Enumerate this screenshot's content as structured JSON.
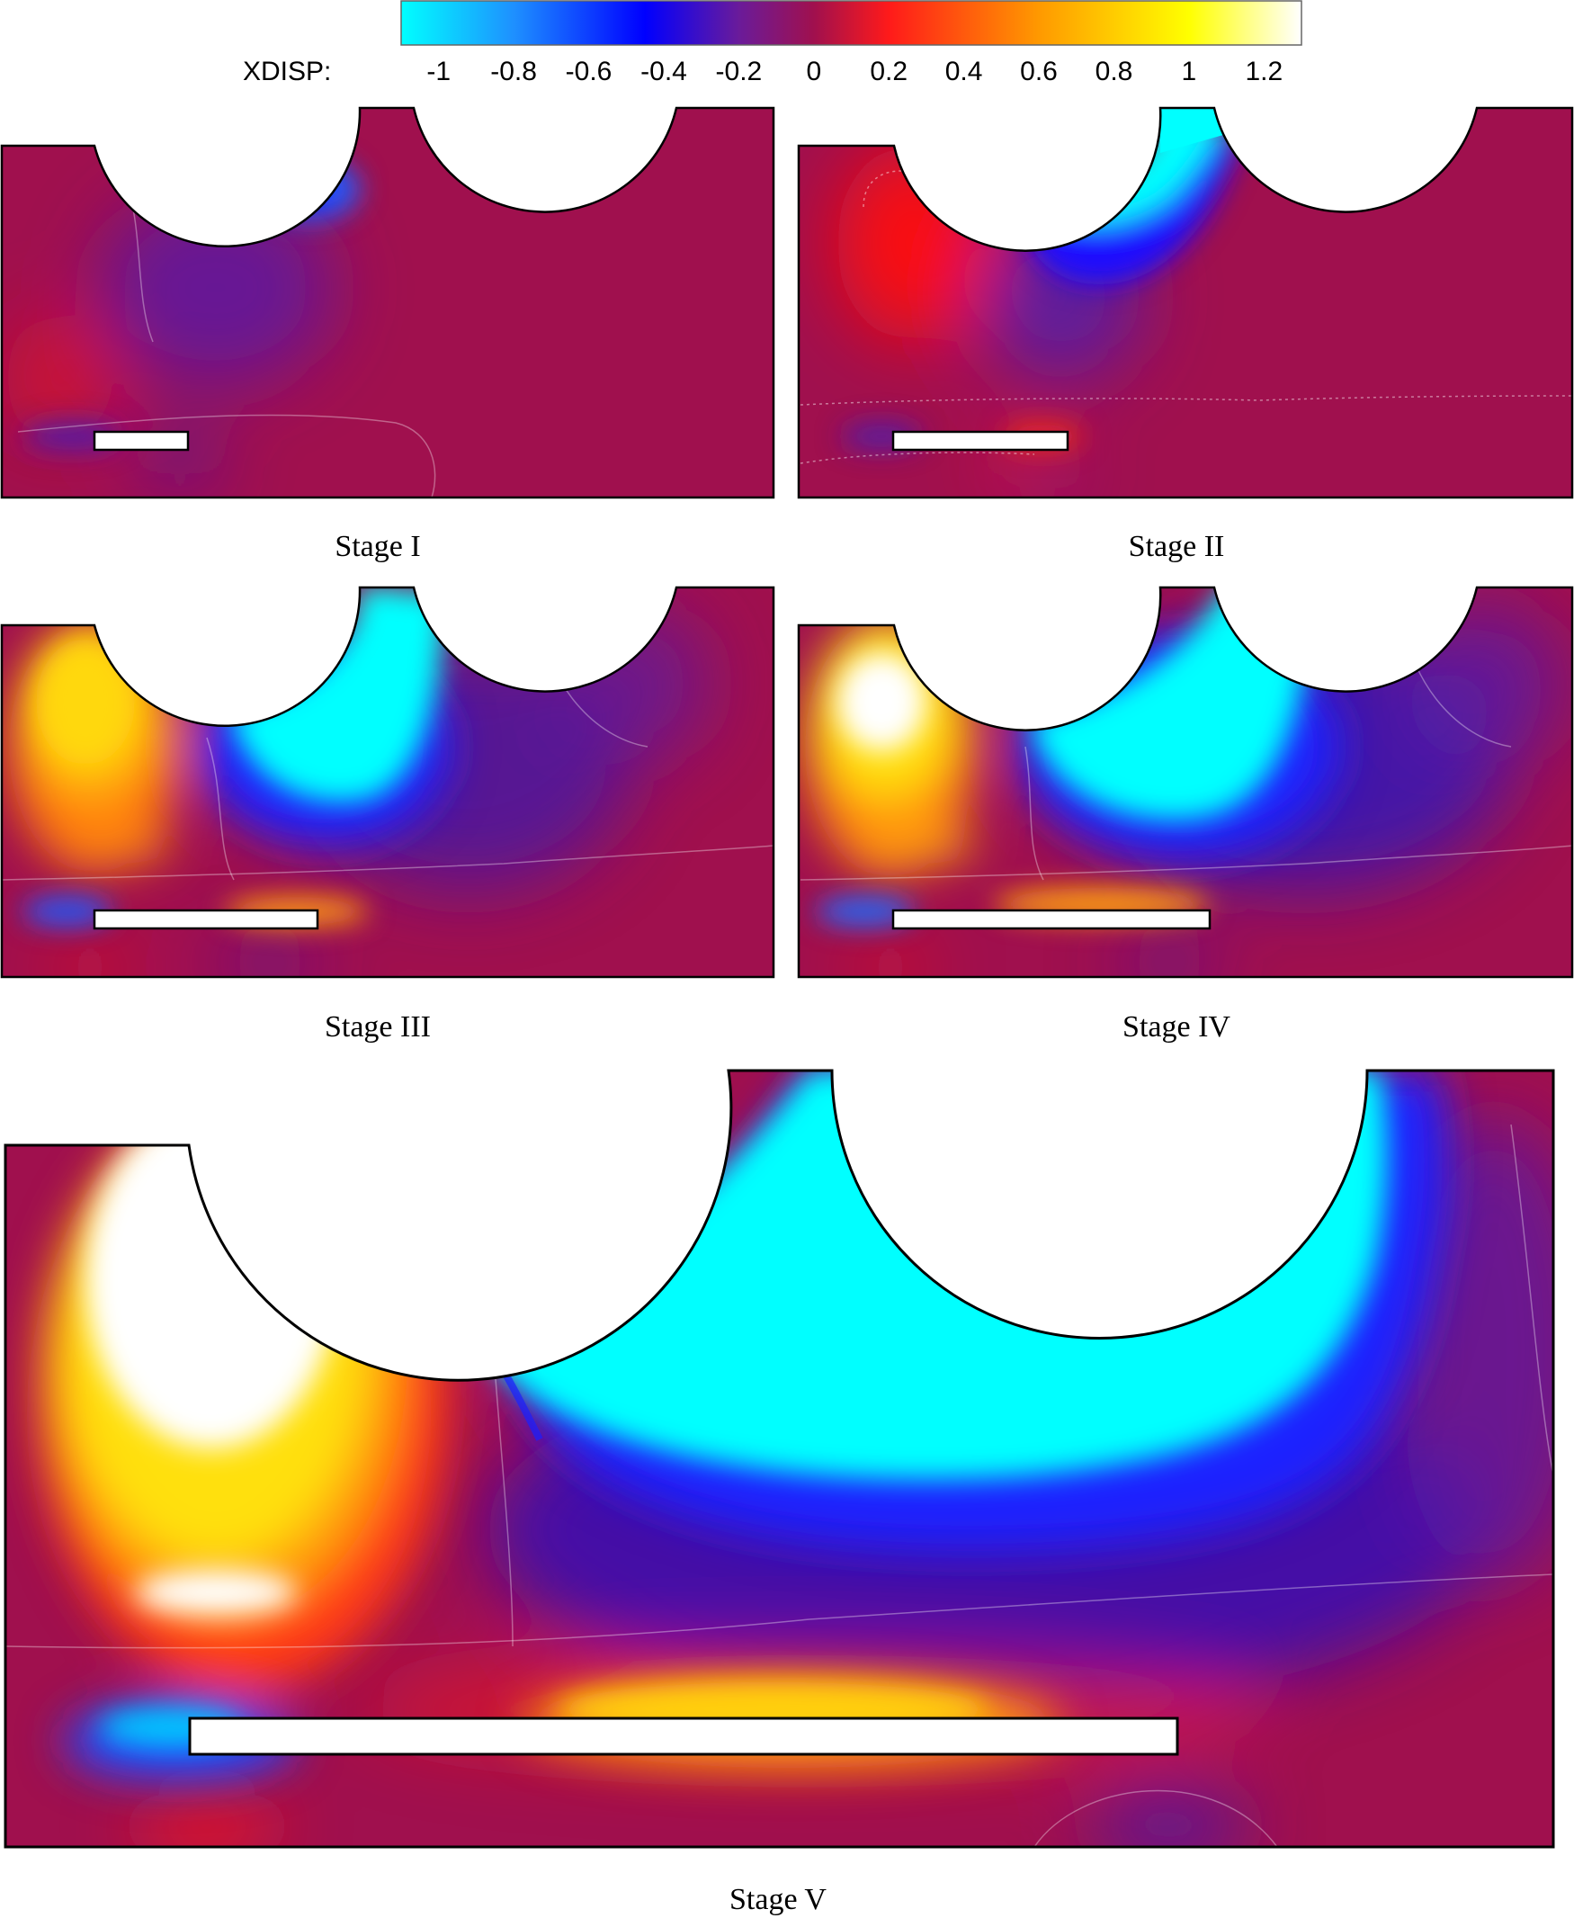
{
  "colorbar": {
    "variable_label": "XDISP:",
    "ticks": [
      "-1",
      "-0.8",
      "-0.6",
      "-0.4",
      "-0.2",
      "0",
      "0.2",
      "0.4",
      "0.6",
      "0.8",
      "1",
      "1.2"
    ],
    "range": [
      -1.1,
      1.3
    ],
    "stops": [
      {
        "value": -1.1,
        "color": "#00ffff"
      },
      {
        "value": -0.8,
        "color": "#1e90ff"
      },
      {
        "value": -0.45,
        "color": "#0000ff"
      },
      {
        "value": -0.2,
        "color": "#6a1b9a"
      },
      {
        "value": 0.0,
        "color": "#a0104e"
      },
      {
        "value": 0.2,
        "color": "#ff1a1a"
      },
      {
        "value": 0.6,
        "color": "#ff9900"
      },
      {
        "value": 1.0,
        "color": "#ffff00"
      },
      {
        "value": 1.3,
        "color": "#ffffff"
      }
    ]
  },
  "stages": [
    {
      "caption": "Stage I"
    },
    {
      "caption": "Stage II"
    },
    {
      "caption": "Stage III"
    },
    {
      "caption": "Stage IV"
    },
    {
      "caption": "Stage V"
    }
  ],
  "colors": {
    "background_field": "#a0104e",
    "outline": "#000000",
    "contour_line": "#ffffff"
  }
}
